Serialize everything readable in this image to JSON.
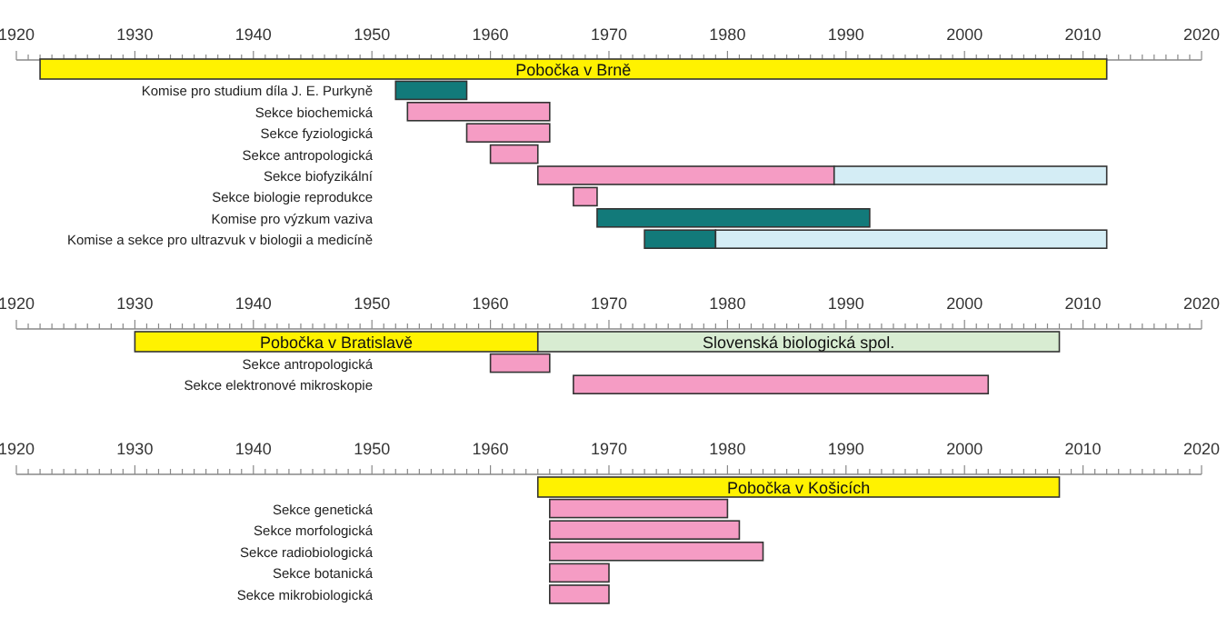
{
  "chart_data": [
    {
      "type": "bar",
      "orientation": "horizontal",
      "xlim": [
        1920,
        2020
      ],
      "xticks": [
        1920,
        {
          "value": 1921,
          "label": null
        },
        {
          "value": 1922,
          "label": null
        },
        {
          "value": 1923,
          "label": null
        },
        {
          "value": 1924,
          "label": null
        },
        {
          "value": 1925,
          "label": null
        },
        {
          "value": 1926,
          "label": null
        },
        {
          "value": 1927,
          "label": null
        },
        {
          "value": 1928,
          "label": null
        },
        {
          "value": 1929,
          "label": null
        },
        1930,
        {
          "value": 1931,
          "label": null
        },
        {
          "value": 1932,
          "label": null
        },
        {
          "value": 1933,
          "label": null
        },
        {
          "value": 1934,
          "label": null
        },
        {
          "value": 1935,
          "label": null
        },
        {
          "value": 1936,
          "label": null
        },
        {
          "value": 1937,
          "label": null
        },
        {
          "value": 1938,
          "label": null
        },
        {
          "value": 1939,
          "label": null
        },
        1940,
        {
          "value": 1941,
          "label": null
        },
        {
          "value": 1942,
          "label": null
        },
        {
          "value": 1943,
          "label": null
        },
        {
          "value": 1944,
          "label": null
        },
        {
          "value": 1945,
          "label": null
        },
        {
          "value": 1946,
          "label": null
        },
        {
          "value": 1947,
          "label": null
        },
        {
          "value": 1948,
          "label": null
        },
        {
          "value": 1949,
          "label": null
        },
        1950,
        {
          "value": 1951,
          "label": null
        },
        {
          "value": 1952,
          "label": null
        },
        {
          "value": 1953,
          "label": null
        },
        {
          "value": 1954,
          "label": null
        },
        {
          "value": 1955,
          "label": null
        },
        {
          "value": 1956,
          "label": null
        },
        {
          "value": 1957,
          "label": null
        },
        {
          "value": 1958,
          "label": null
        },
        {
          "value": 1959,
          "label": null
        },
        1960,
        {
          "value": 1961,
          "label": null
        },
        {
          "value": 1962,
          "label": null
        },
        {
          "value": 1963,
          "label": null
        },
        {
          "value": 1964,
          "label": null
        },
        {
          "value": 1965,
          "label": null
        },
        {
          "value": 1966,
          "label": null
        },
        {
          "value": 1967,
          "label": null
        },
        {
          "value": 1968,
          "label": null
        },
        {
          "value": 1969,
          "label": null
        },
        1970,
        {
          "value": 1971,
          "label": null
        },
        {
          "value": 1972,
          "label": null
        },
        {
          "value": 1973,
          "label": null
        },
        {
          "value": 1974,
          "label": null
        },
        {
          "value": 1975,
          "label": null
        },
        {
          "value": 1976,
          "label": null
        },
        {
          "value": 1977,
          "label": null
        },
        {
          "value": 1978,
          "label": null
        },
        {
          "value": 1979,
          "label": null
        },
        1980,
        {
          "value": 1981,
          "label": null
        },
        {
          "value": 1982,
          "label": null
        },
        {
          "value": 1983,
          "label": null
        },
        {
          "value": 1984,
          "label": null
        },
        {
          "value": 1985,
          "label": null
        },
        {
          "value": 1986,
          "label": null
        },
        {
          "value": 1987,
          "label": null
        },
        {
          "value": 1988,
          "label": null
        },
        {
          "value": 1989,
          "label": null
        },
        1990,
        {
          "value": 1991,
          "label": null
        },
        {
          "value": 1992,
          "label": null
        },
        {
          "value": 1993,
          "label": null
        },
        {
          "value": 1994,
          "label": null
        },
        {
          "value": 1995,
          "label": null
        },
        {
          "value": 1996,
          "label": null
        },
        {
          "value": 1997,
          "label": null
        },
        {
          "value": 1998,
          "label": null
        },
        {
          "value": 1999,
          "label": null
        },
        2000,
        {
          "value": 2001,
          "label": null
        },
        {
          "value": 2002,
          "label": null
        },
        {
          "value": 2003,
          "label": null
        },
        {
          "value": 2004,
          "label": null
        },
        {
          "value": 2005,
          "label": null
        },
        {
          "value": 2006,
          "label": null
        },
        {
          "value": 2007,
          "label": null
        },
        {
          "value": 2008,
          "label": null
        },
        {
          "value": 2009,
          "label": null
        },
        2010,
        {
          "value": 2011,
          "label": null
        },
        {
          "value": 2012,
          "label": null
        },
        {
          "value": 2013,
          "label": null
        },
        {
          "value": 2014,
          "label": null
        },
        {
          "value": 2015,
          "label": null
        },
        {
          "value": 2016,
          "label": null
        },
        {
          "value": 2017,
          "label": null
        },
        {
          "value": 2018,
          "label": null
        },
        {
          "value": 2019,
          "label": null
        },
        2020
      ],
      "categories": [
        null,
        "Komise pro studium díla J. E. Purkyně",
        "Sekce biochemická",
        "Sekce fyziologická",
        "Sekce antropologická",
        "Sekce biofyzikální",
        "Sekce biologie reprodukce",
        "Komise pro výzkum vaziva",
        "Komise a sekce pro ultrazvuk v biologii a medicíně"
      ],
      "series": [
        {
          "color": "#fff200",
          "base": [
            1922,
            null,
            null,
            null,
            null,
            null,
            null,
            null,
            null
          ],
          "values": [
            90,
            null,
            null,
            null,
            null,
            null,
            null,
            null,
            null
          ],
          "value_labels": [
            "Pobočka v Brně",
            null,
            null,
            null,
            null,
            null,
            null,
            null,
            null
          ]
        },
        {
          "color": "#127a7a",
          "base": [
            null,
            1952,
            null,
            null,
            null,
            null,
            null,
            1969,
            1973
          ],
          "values": [
            null,
            6,
            null,
            null,
            null,
            null,
            null,
            23,
            6
          ]
        },
        {
          "color": "#f59cc4",
          "base": [
            null,
            null,
            1953,
            1958,
            1960,
            1964,
            1967,
            null,
            null
          ],
          "values": [
            null,
            null,
            12,
            7,
            4,
            25,
            2,
            null,
            null
          ]
        },
        {
          "color": "#d4edf5",
          "base": [
            null,
            null,
            null,
            null,
            null,
            1989,
            null,
            null,
            1979
          ],
          "values": [
            null,
            null,
            null,
            null,
            null,
            23,
            null,
            null,
            33
          ]
        }
      ]
    },
    {
      "type": "bar",
      "orientation": "horizontal",
      "xlim": [
        1920,
        2020
      ],
      "xticks": [
        1920,
        {
          "value": 1921,
          "label": null
        },
        {
          "value": 1922,
          "label": null
        },
        {
          "value": 1923,
          "label": null
        },
        {
          "value": 1924,
          "label": null
        },
        {
          "value": 1925,
          "label": null
        },
        {
          "value": 1926,
          "label": null
        },
        {
          "value": 1927,
          "label": null
        },
        {
          "value": 1928,
          "label": null
        },
        {
          "value": 1929,
          "label": null
        },
        1930,
        {
          "value": 1931,
          "label": null
        },
        {
          "value": 1932,
          "label": null
        },
        {
          "value": 1933,
          "label": null
        },
        {
          "value": 1934,
          "label": null
        },
        {
          "value": 1935,
          "label": null
        },
        {
          "value": 1936,
          "label": null
        },
        {
          "value": 1937,
          "label": null
        },
        {
          "value": 1938,
          "label": null
        },
        {
          "value": 1939,
          "label": null
        },
        1940,
        {
          "value": 1941,
          "label": null
        },
        {
          "value": 1942,
          "label": null
        },
        {
          "value": 1943,
          "label": null
        },
        {
          "value": 1944,
          "label": null
        },
        {
          "value": 1945,
          "label": null
        },
        {
          "value": 1946,
          "label": null
        },
        {
          "value": 1947,
          "label": null
        },
        {
          "value": 1948,
          "label": null
        },
        {
          "value": 1949,
          "label": null
        },
        1950,
        {
          "value": 1951,
          "label": null
        },
        {
          "value": 1952,
          "label": null
        },
        {
          "value": 1953,
          "label": null
        },
        {
          "value": 1954,
          "label": null
        },
        {
          "value": 1955,
          "label": null
        },
        {
          "value": 1956,
          "label": null
        },
        {
          "value": 1957,
          "label": null
        },
        {
          "value": 1958,
          "label": null
        },
        {
          "value": 1959,
          "label": null
        },
        1960,
        {
          "value": 1961,
          "label": null
        },
        {
          "value": 1962,
          "label": null
        },
        {
          "value": 1963,
          "label": null
        },
        {
          "value": 1964,
          "label": null
        },
        {
          "value": 1965,
          "label": null
        },
        {
          "value": 1966,
          "label": null
        },
        {
          "value": 1967,
          "label": null
        },
        {
          "value": 1968,
          "label": null
        },
        {
          "value": 1969,
          "label": null
        },
        1970,
        {
          "value": 1971,
          "label": null
        },
        {
          "value": 1972,
          "label": null
        },
        {
          "value": 1973,
          "label": null
        },
        {
          "value": 1974,
          "label": null
        },
        {
          "value": 1975,
          "label": null
        },
        {
          "value": 1976,
          "label": null
        },
        {
          "value": 1977,
          "label": null
        },
        {
          "value": 1978,
          "label": null
        },
        {
          "value": 1979,
          "label": null
        },
        1980,
        {
          "value": 1981,
          "label": null
        },
        {
          "value": 1982,
          "label": null
        },
        {
          "value": 1983,
          "label": null
        },
        {
          "value": 1984,
          "label": null
        },
        {
          "value": 1985,
          "label": null
        },
        {
          "value": 1986,
          "label": null
        },
        {
          "value": 1987,
          "label": null
        },
        {
          "value": 1988,
          "label": null
        },
        {
          "value": 1989,
          "label": null
        },
        1990,
        {
          "value": 1991,
          "label": null
        },
        {
          "value": 1992,
          "label": null
        },
        {
          "value": 1993,
          "label": null
        },
        {
          "value": 1994,
          "label": null
        },
        {
          "value": 1995,
          "label": null
        },
        {
          "value": 1996,
          "label": null
        },
        {
          "value": 1997,
          "label": null
        },
        {
          "value": 1998,
          "label": null
        },
        {
          "value": 1999,
          "label": null
        },
        2000,
        {
          "value": 2001,
          "label": null
        },
        {
          "value": 2002,
          "label": null
        },
        {
          "value": 2003,
          "label": null
        },
        {
          "value": 2004,
          "label": null
        },
        {
          "value": 2005,
          "label": null
        },
        {
          "value": 2006,
          "label": null
        },
        {
          "value": 2007,
          "label": null
        },
        {
          "value": 2008,
          "label": null
        },
        {
          "value": 2009,
          "label": null
        },
        2010,
        {
          "value": 2011,
          "label": null
        },
        {
          "value": 2012,
          "label": null
        },
        {
          "value": 2013,
          "label": null
        },
        {
          "value": 2014,
          "label": null
        },
        {
          "value": 2015,
          "label": null
        },
        {
          "value": 2016,
          "label": null
        },
        {
          "value": 2017,
          "label": null
        },
        {
          "value": 2018,
          "label": null
        },
        {
          "value": 2019,
          "label": null
        },
        2020
      ],
      "categories": [
        null,
        "Sekce antropologická",
        "Sekce elektronové mikroskopie"
      ],
      "series": [
        {
          "color": "#fff200",
          "base": [
            1930,
            null,
            null
          ],
          "values": [
            34,
            null,
            null
          ],
          "value_labels": [
            "Pobočka v Bratislavě",
            null,
            null
          ]
        },
        {
          "color": "#d8ecd2",
          "base": [
            1964,
            null,
            null
          ],
          "values": [
            44,
            null,
            null
          ],
          "value_labels": [
            "Slovenská biologická spol.",
            null,
            null
          ]
        },
        {
          "color": "#f59cc4",
          "base": [
            null,
            1960,
            1967
          ],
          "values": [
            null,
            5,
            35
          ]
        }
      ]
    },
    {
      "type": "bar",
      "orientation": "horizontal",
      "xlim": [
        1920,
        2020
      ],
      "xticks": [
        1920,
        {
          "value": 1921,
          "label": null
        },
        {
          "value": 1922,
          "label": null
        },
        {
          "value": 1923,
          "label": null
        },
        {
          "value": 1924,
          "label": null
        },
        {
          "value": 1925,
          "label": null
        },
        {
          "value": 1926,
          "label": null
        },
        {
          "value": 1927,
          "label": null
        },
        {
          "value": 1928,
          "label": null
        },
        {
          "value": 1929,
          "label": null
        },
        1930,
        {
          "value": 1931,
          "label": null
        },
        {
          "value": 1932,
          "label": null
        },
        {
          "value": 1933,
          "label": null
        },
        {
          "value": 1934,
          "label": null
        },
        {
          "value": 1935,
          "label": null
        },
        {
          "value": 1936,
          "label": null
        },
        {
          "value": 1937,
          "label": null
        },
        {
          "value": 1938,
          "label": null
        },
        {
          "value": 1939,
          "label": null
        },
        1940,
        {
          "value": 1941,
          "label": null
        },
        {
          "value": 1942,
          "label": null
        },
        {
          "value": 1943,
          "label": null
        },
        {
          "value": 1944,
          "label": null
        },
        {
          "value": 1945,
          "label": null
        },
        {
          "value": 1946,
          "label": null
        },
        {
          "value": 1947,
          "label": null
        },
        {
          "value": 1948,
          "label": null
        },
        {
          "value": 1949,
          "label": null
        },
        1950,
        {
          "value": 1951,
          "label": null
        },
        {
          "value": 1952,
          "label": null
        },
        {
          "value": 1953,
          "label": null
        },
        {
          "value": 1954,
          "label": null
        },
        {
          "value": 1955,
          "label": null
        },
        {
          "value": 1956,
          "label": null
        },
        {
          "value": 1957,
          "label": null
        },
        {
          "value": 1958,
          "label": null
        },
        {
          "value": 1959,
          "label": null
        },
        1960,
        {
          "value": 1961,
          "label": null
        },
        {
          "value": 1962,
          "label": null
        },
        {
          "value": 1963,
          "label": null
        },
        {
          "value": 1964,
          "label": null
        },
        {
          "value": 1965,
          "label": null
        },
        {
          "value": 1966,
          "label": null
        },
        {
          "value": 1967,
          "label": null
        },
        {
          "value": 1968,
          "label": null
        },
        {
          "value": 1969,
          "label": null
        },
        1970,
        {
          "value": 1971,
          "label": null
        },
        {
          "value": 1972,
          "label": null
        },
        {
          "value": 1973,
          "label": null
        },
        {
          "value": 1974,
          "label": null
        },
        {
          "value": 1975,
          "label": null
        },
        {
          "value": 1976,
          "label": null
        },
        {
          "value": 1977,
          "label": null
        },
        {
          "value": 1978,
          "label": null
        },
        {
          "value": 1979,
          "label": null
        },
        1980,
        {
          "value": 1981,
          "label": null
        },
        {
          "value": 1982,
          "label": null
        },
        {
          "value": 1983,
          "label": null
        },
        {
          "value": 1984,
          "label": null
        },
        {
          "value": 1985,
          "label": null
        },
        {
          "value": 1986,
          "label": null
        },
        {
          "value": 1987,
          "label": null
        },
        {
          "value": 1988,
          "label": null
        },
        {
          "value": 1989,
          "label": null
        },
        1990,
        {
          "value": 1991,
          "label": null
        },
        {
          "value": 1992,
          "label": null
        },
        {
          "value": 1993,
          "label": null
        },
        {
          "value": 1994,
          "label": null
        },
        {
          "value": 1995,
          "label": null
        },
        {
          "value": 1996,
          "label": null
        },
        {
          "value": 1997,
          "label": null
        },
        {
          "value": 1998,
          "label": null
        },
        {
          "value": 1999,
          "label": null
        },
        2000,
        {
          "value": 2001,
          "label": null
        },
        {
          "value": 2002,
          "label": null
        },
        {
          "value": 2003,
          "label": null
        },
        {
          "value": 2004,
          "label": null
        },
        {
          "value": 2005,
          "label": null
        },
        {
          "value": 2006,
          "label": null
        },
        {
          "value": 2007,
          "label": null
        },
        {
          "value": 2008,
          "label": null
        },
        {
          "value": 2009,
          "label": null
        },
        2010,
        {
          "value": 2011,
          "label": null
        },
        {
          "value": 2012,
          "label": null
        },
        {
          "value": 2013,
          "label": null
        },
        {
          "value": 2014,
          "label": null
        },
        {
          "value": 2015,
          "label": null
        },
        {
          "value": 2016,
          "label": null
        },
        {
          "value": 2017,
          "label": null
        },
        {
          "value": 2018,
          "label": null
        },
        {
          "value": 2019,
          "label": null
        },
        2020
      ],
      "categories": [
        null,
        "Sekce genetická",
        "Sekce morfologická",
        "Sekce radiobiologická",
        "Sekce botanická",
        "Sekce mikrobiologická"
      ],
      "series": [
        {
          "color": "#fff200",
          "base": [
            1964,
            null,
            null,
            null,
            null,
            null
          ],
          "values": [
            44,
            null,
            null,
            null,
            null,
            null
          ],
          "value_labels": [
            "Pobočka v Košicích",
            null,
            null,
            null,
            null,
            null
          ]
        },
        {
          "color": "#f59cc4",
          "base": [
            null,
            1965,
            1965,
            1965,
            1965,
            1965
          ],
          "values": [
            null,
            15,
            16,
            18,
            5,
            5
          ]
        }
      ]
    }
  ]
}
